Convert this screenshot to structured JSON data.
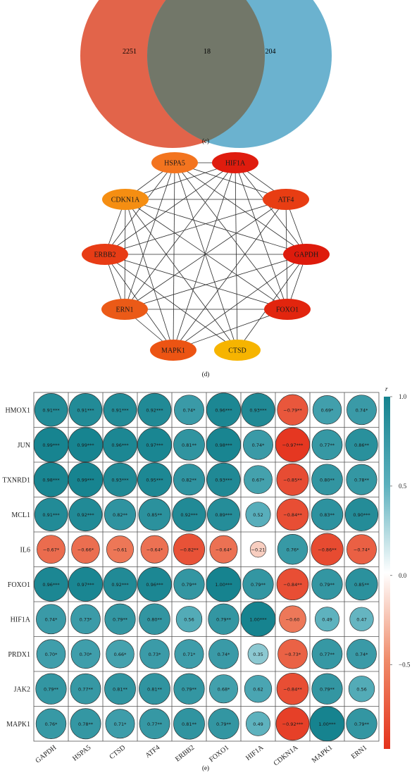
{
  "venn": {
    "caption": "(c)",
    "colors": {
      "left": "#e2644a",
      "right": "#6bb2cf",
      "overlap": "#727769"
    },
    "left_only": "2251",
    "overlap": "18",
    "right_only": "204"
  },
  "network": {
    "caption": "(d)",
    "nodes": [
      {
        "label": "HSPA5",
        "color": "#f3741f"
      },
      {
        "label": "HIF1A",
        "color": "#df1c0e"
      },
      {
        "label": "ATF4",
        "color": "#e83d13"
      },
      {
        "label": "GAPDH",
        "color": "#de1b0c"
      },
      {
        "label": "FOXO1",
        "color": "#e2250e"
      },
      {
        "label": "CTSD",
        "color": "#f6b400"
      },
      {
        "label": "MAPK1",
        "color": "#ec5413"
      },
      {
        "label": "ERN1",
        "color": "#eb5a17"
      },
      {
        "label": "ERBB2",
        "color": "#e83c15"
      },
      {
        "label": "CDKN1A",
        "color": "#f58e12"
      }
    ],
    "edges": [
      [
        0,
        1
      ],
      [
        0,
        2
      ],
      [
        0,
        3
      ],
      [
        0,
        4
      ],
      [
        0,
        5
      ],
      [
        0,
        6
      ],
      [
        0,
        7
      ],
      [
        0,
        8
      ],
      [
        0,
        9
      ],
      [
        1,
        2
      ],
      [
        1,
        3
      ],
      [
        1,
        4
      ],
      [
        1,
        5
      ],
      [
        1,
        6
      ],
      [
        1,
        7
      ],
      [
        1,
        8
      ],
      [
        1,
        9
      ],
      [
        2,
        3
      ],
      [
        2,
        4
      ],
      [
        2,
        6
      ],
      [
        2,
        7
      ],
      [
        2,
        8
      ],
      [
        2,
        9
      ],
      [
        3,
        4
      ],
      [
        3,
        5
      ],
      [
        3,
        6
      ],
      [
        3,
        7
      ],
      [
        3,
        8
      ],
      [
        3,
        9
      ],
      [
        4,
        6
      ],
      [
        4,
        7
      ],
      [
        4,
        8
      ],
      [
        4,
        9
      ],
      [
        5,
        8
      ],
      [
        5,
        9
      ],
      [
        6,
        7
      ],
      [
        6,
        8
      ],
      [
        6,
        9
      ],
      [
        7,
        8
      ],
      [
        7,
        9
      ],
      [
        8,
        9
      ]
    ]
  },
  "chart_data": {
    "type": "heatmap",
    "caption": "(e)",
    "rows": [
      "HMOX1",
      "JUN",
      "TXNRD1",
      "MCL1",
      "IL6",
      "FOXO1",
      "HIF1A",
      "PRDX1",
      "JAK2",
      "MAPK1"
    ],
    "columns": [
      "GAPDH",
      "HSPA5",
      "CTSD",
      "ATF4",
      "ERBB2",
      "FOXO1",
      "HIF1A",
      "CDKN1A",
      "MAPK1",
      "ERN1"
    ],
    "values": [
      [
        0.91,
        0.91,
        0.91,
        0.92,
        0.74,
        0.96,
        0.93,
        -0.79,
        0.69,
        0.74
      ],
      [
        0.99,
        0.99,
        0.96,
        0.97,
        0.81,
        0.98,
        0.74,
        -0.97,
        0.77,
        0.86
      ],
      [
        0.98,
        0.99,
        0.93,
        0.95,
        0.82,
        0.93,
        0.67,
        -0.85,
        0.8,
        0.78
      ],
      [
        0.91,
        0.92,
        0.82,
        0.85,
        0.92,
        0.89,
        0.52,
        -0.84,
        0.83,
        0.9
      ],
      [
        -0.67,
        -0.66,
        -0.61,
        -0.64,
        -0.82,
        -0.64,
        -0.21,
        0.76,
        -0.86,
        -0.74
      ],
      [
        0.96,
        0.97,
        0.92,
        0.96,
        0.79,
        1.0,
        0.79,
        -0.84,
        0.79,
        0.85
      ],
      [
        0.74,
        0.73,
        0.79,
        0.8,
        0.56,
        0.79,
        1.0,
        -0.6,
        0.49,
        0.47
      ],
      [
        0.7,
        0.7,
        0.66,
        0.73,
        0.71,
        0.74,
        0.35,
        -0.73,
        0.77,
        0.74
      ],
      [
        0.79,
        0.77,
        0.81,
        0.81,
        0.79,
        0.68,
        0.62,
        -0.84,
        0.79,
        0.56
      ],
      [
        0.76,
        0.78,
        0.71,
        0.77,
        0.81,
        0.79,
        0.49,
        -0.92,
        1.0,
        0.79
      ]
    ],
    "labels": [
      [
        "0.91***",
        "0.91***",
        "0.91***",
        "0.92***",
        "0.74*",
        "0.96***",
        "0.93***",
        "−0.79**",
        "0.69*",
        "0.74*"
      ],
      [
        "0.99***",
        "0.99***",
        "0.96***",
        "0.97***",
        "0.81**",
        "0.98***",
        "0.74*",
        "−0.97***",
        "0.77**",
        "0.86**"
      ],
      [
        "0.98***",
        "0.99***",
        "0.93***",
        "0.95***",
        "0.82**",
        "0.93***",
        "0.67*",
        "−0.85**",
        "0.80**",
        "0.78**"
      ],
      [
        "0.91***",
        "0.92***",
        "0.82**",
        "0.85**",
        "0.92***",
        "0.89***",
        "0.52",
        "−0.84**",
        "0.83**",
        "0.90***"
      ],
      [
        "−0.67*",
        "−0.66*",
        "−0.61",
        "−0.64*",
        "−0.82**",
        "−0.64*",
        "−0.21",
        "0.76*",
        "−0.86**",
        "−0.74*"
      ],
      [
        "0.96***",
        "0.97***",
        "0.92***",
        "0.96***",
        "0.79**",
        "1.00***",
        "0.79**",
        "−0.84**",
        "0.79**",
        "0.85**"
      ],
      [
        "0.74*",
        "0.73*",
        "0.79**",
        "0.80**",
        "0.56",
        "0.79**",
        "1.00***",
        "−0.60",
        "0.49",
        "0.47"
      ],
      [
        "0.70*",
        "0.70*",
        "0.66*",
        "0.73*",
        "0.71*",
        "0.74*",
        "0.35",
        "−0.73*",
        "0.77**",
        "0.74*"
      ],
      [
        "0.79**",
        "0.77**",
        "0.81**",
        "0.81**",
        "0.79**",
        "0.68*",
        "0.62",
        "−0.84**",
        "0.79**",
        "0.56"
      ],
      [
        "0.76*",
        "0.78**",
        "0.71*",
        "0.77**",
        "0.81**",
        "0.79**",
        "0.49",
        "−0.92***",
        "1.00***",
        "0.79**"
      ]
    ],
    "legend": {
      "title": "r",
      "ticks": [
        "1.0",
        "0.5",
        "0.0",
        "−0.5"
      ],
      "tick_values": [
        1.0,
        0.5,
        0.0,
        -0.5
      ],
      "range": [
        -0.97,
        1.0
      ]
    },
    "colors": {
      "positive": "#16838f",
      "negative": "#e4321c",
      "neutral": "#ffffff"
    }
  }
}
